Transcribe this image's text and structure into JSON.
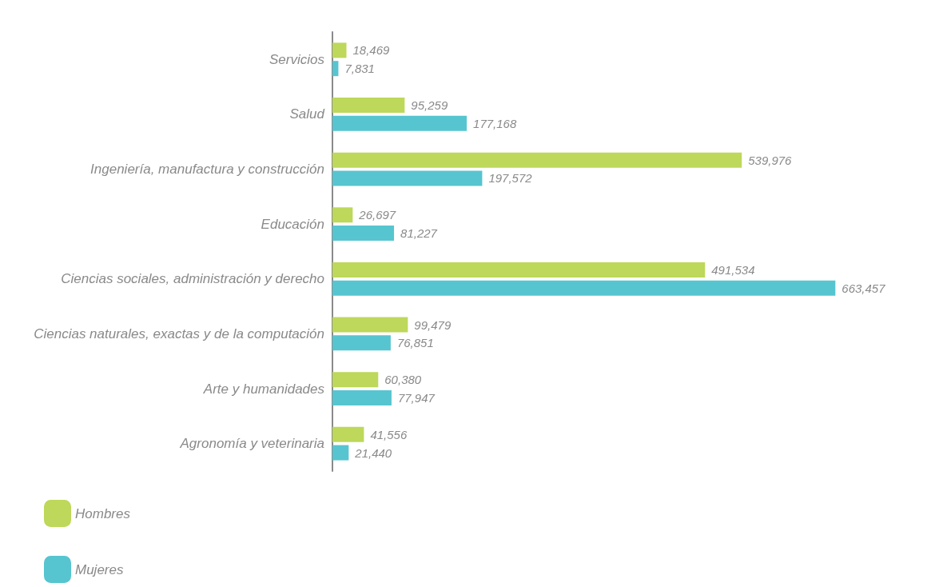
{
  "chart_data": {
    "type": "bar",
    "orientation": "horizontal",
    "categories": [
      "Servicios",
      "Salud",
      "Ingeniería, manufactura y construcción",
      "Educación",
      "Ciencias sociales, administración y derecho",
      "Ciencias naturales, exactas y de la computación",
      "Arte y humanidades",
      "Agronomía y veterinaria"
    ],
    "series": [
      {
        "name": "Hombres",
        "color": "#bdd85a",
        "values": [
          18469,
          95259,
          539976,
          26697,
          491534,
          99479,
          60380,
          41556
        ],
        "value_labels": [
          "18,469",
          "95,259",
          "539,976",
          "26,697",
          "491,534",
          "99,479",
          "60,380",
          "41,556"
        ]
      },
      {
        "name": "Mujeres",
        "color": "#56c5d0",
        "values": [
          7831,
          177168,
          197572,
          81227,
          663457,
          76851,
          77947,
          21440
        ],
        "value_labels": [
          "7,831",
          "177,168",
          "197,572",
          "81,227",
          "663,457",
          "76,851",
          "77,947",
          "21,440"
        ]
      }
    ],
    "legend": "bottom left",
    "tick_labels": "y",
    "grid": false
  }
}
